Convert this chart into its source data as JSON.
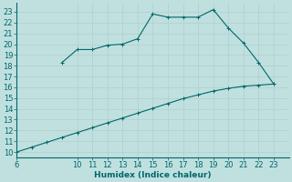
{
  "title": "",
  "xlabel": "Humidex (Indice chaleur)",
  "bg_color": "#c0e0e0",
  "line_color": "#006868",
  "grid_color": "#b0d0d0",
  "xlim": [
    6,
    24
  ],
  "ylim": [
    9.5,
    23.8
  ],
  "xticks": [
    6,
    10,
    11,
    12,
    13,
    14,
    15,
    16,
    17,
    18,
    19,
    20,
    21,
    22,
    23
  ],
  "yticks": [
    10,
    11,
    12,
    13,
    14,
    15,
    16,
    17,
    18,
    19,
    20,
    21,
    22,
    23
  ],
  "line1_x": [
    6,
    7,
    8,
    9,
    10,
    11,
    12,
    13,
    14,
    15,
    16,
    17,
    18,
    19,
    20,
    21,
    22,
    23
  ],
  "line1_y": [
    10.0,
    10.45,
    10.9,
    11.35,
    11.8,
    12.25,
    12.7,
    13.15,
    13.6,
    14.05,
    14.5,
    14.95,
    15.3,
    15.65,
    15.9,
    16.1,
    16.2,
    16.3
  ],
  "line2_x": [
    9,
    10,
    11,
    12,
    13,
    14,
    15,
    16,
    17,
    18,
    19,
    20,
    21,
    22,
    23
  ],
  "line2_y": [
    18.3,
    19.5,
    19.5,
    19.9,
    20.0,
    20.5,
    22.8,
    22.5,
    22.5,
    22.5,
    23.2,
    21.5,
    20.1,
    18.3,
    16.3
  ],
  "xlabel_fontsize": 6.5,
  "tick_fontsize": 6
}
